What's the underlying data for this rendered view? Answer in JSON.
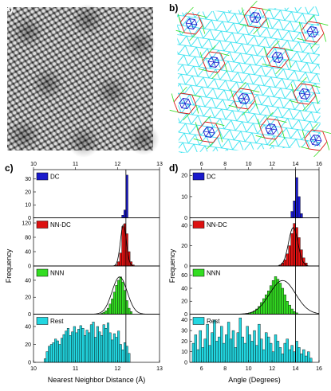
{
  "figure": {
    "panel_labels": [
      "a)",
      "b)",
      "c)",
      "d)"
    ],
    "colors": {
      "DC": "#1a1acc",
      "NN-DC": "#dd1111",
      "NNN": "#33dd22",
      "Rest": "#22d6e0",
      "lattice_bg": "#22e0ee"
    }
  },
  "chart_data": [
    {
      "id": "c",
      "type": "bar",
      "panel_label": "c)",
      "xlabel": "Nearest Neighbor Distance (Å)",
      "ylabel": "Frequency",
      "xlim": [
        10,
        13
      ],
      "xticks": [
        "10",
        "11",
        "12",
        "13"
      ],
      "reference_line_x": 12.2,
      "bin_width": 0.05,
      "subplots": [
        {
          "name": "DC",
          "yticks": [
            "0",
            "10",
            "20",
            "30"
          ],
          "ylim": [
            0,
            36
          ],
          "bins_start": 12.1,
          "counts": [
            2,
            6,
            33
          ],
          "fit": null
        },
        {
          "name": "NN-DC",
          "yticks": [
            "0",
            "40",
            "80",
            "120"
          ],
          "ylim": [
            0,
            130
          ],
          "bins_start": 11.95,
          "counts": [
            3,
            12,
            36,
            110,
            118,
            90,
            40,
            12,
            3
          ],
          "fit": {
            "mu": 12.14,
            "sigma": 0.07,
            "amp": 116
          }
        },
        {
          "name": "NNN",
          "yticks": [
            "0",
            "20",
            "40"
          ],
          "ylim": [
            0,
            55
          ],
          "bins_start": 11.6,
          "counts": [
            1,
            2,
            4,
            7,
            12,
            18,
            26,
            34,
            40,
            44,
            38,
            28,
            16,
            7,
            3
          ],
          "fit": {
            "mu": 12.05,
            "sigma": 0.18,
            "amp": 44
          }
        },
        {
          "name": "Rest",
          "yticks": [
            "0",
            "20",
            "40"
          ],
          "ylim": [
            0,
            52
          ],
          "bins_start": 10.25,
          "counts": [
            4,
            12,
            18,
            20,
            22,
            26,
            24,
            20,
            27,
            31,
            35,
            38,
            30,
            34,
            40,
            33,
            37,
            41,
            38,
            30,
            36,
            33,
            42,
            45,
            28,
            40,
            34,
            30,
            42,
            38,
            44,
            33,
            25,
            32,
            28,
            35,
            20,
            14,
            22,
            18,
            10
          ],
          "fit": null
        }
      ]
    },
    {
      "id": "d",
      "type": "bar",
      "panel_label": "d)",
      "xlabel": "Angle (Degrees)",
      "ylabel": "Frequency",
      "xlim": [
        5,
        16
      ],
      "xticks": [
        "6",
        "8",
        "10",
        "12",
        "14",
        "16"
      ],
      "reference_line_x": 14,
      "bin_width": 0.2,
      "subplots": [
        {
          "name": "DC",
          "yticks": [
            "0",
            "10",
            "20"
          ],
          "ylim": [
            0,
            22
          ],
          "bins_start": 13.6,
          "counts": [
            3,
            8,
            19,
            10,
            2
          ],
          "fit": null
        },
        {
          "name": "NN-DC",
          "yticks": [
            "0",
            "20",
            "40"
          ],
          "ylim": [
            0,
            46
          ],
          "bins_start": 12.6,
          "counts": [
            1,
            3,
            6,
            12,
            20,
            32,
            42,
            38,
            28,
            16,
            8,
            3
          ],
          "fit": {
            "mu": 13.8,
            "sigma": 0.4,
            "amp": 38
          }
        },
        {
          "name": "NNN",
          "yticks": [
            "0",
            "20",
            "40",
            "60"
          ],
          "ylim": [
            0,
            72
          ],
          "bins_start": 9.8,
          "counts": [
            1,
            2,
            3,
            5,
            8,
            12,
            18,
            24,
            30,
            36,
            44,
            52,
            58,
            54,
            48,
            40,
            30,
            20,
            14,
            8,
            4,
            2
          ],
          "fit": {
            "mu": 12.9,
            "sigma": 1.1,
            "amp": 52
          }
        },
        {
          "name": "Rest",
          "yticks": [
            "0",
            "10",
            "20",
            "30",
            "40"
          ],
          "ylim": [
            0,
            44
          ],
          "bins_start": 5.2,
          "counts": [
            18,
            26,
            12,
            30,
            14,
            22,
            36,
            16,
            28,
            40,
            20,
            24,
            34,
            18,
            26,
            38,
            22,
            30,
            14,
            28,
            42,
            24,
            18,
            34,
            26,
            20,
            30,
            16,
            36,
            22,
            12,
            28,
            24,
            18,
            10,
            26,
            20,
            14,
            8,
            18,
            22,
            12,
            16,
            10,
            20,
            14,
            8,
            12,
            6,
            10,
            4
          ],
          "fit": null
        }
      ]
    }
  ]
}
